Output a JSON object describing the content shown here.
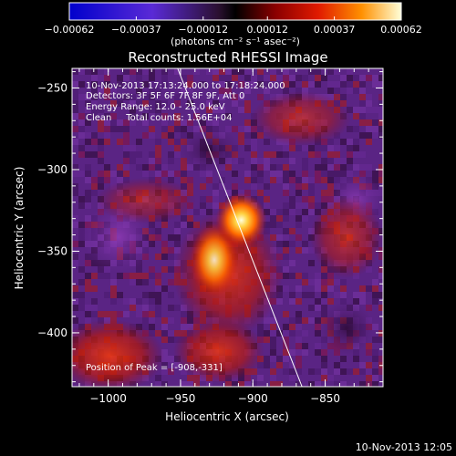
{
  "chart_data": {
    "type": "heatmap",
    "title": "Reconstructed RHESSI Image",
    "xlabel": "Heliocentric X (arcsec)",
    "ylabel": "Heliocentric Y (arcsec)",
    "xlim": [
      -1025,
      -810
    ],
    "ylim": [
      -433,
      -238
    ],
    "x_ticks": [
      -1000,
      -950,
      -900,
      -850
    ],
    "y_ticks": [
      -400,
      -350,
      -300,
      -250
    ],
    "colorbar": {
      "ticks": [
        -0.00062,
        -0.00037,
        -0.00012,
        0.00012,
        0.00037,
        0.00062
      ],
      "tick_labels": [
        "-0.00062",
        "-0.00037",
        "-0.00012",
        "0.00012",
        "0.00037",
        "0.00062"
      ],
      "units_label": "(photons cm⁻² s⁻¹ asec⁻²)"
    },
    "annotations": [
      "10-Nov-2013 17:13:24.000 to 17:18:24.000",
      "Detectors: 3F 5F 6F 7F 8F 9F, Att 0",
      "Energy Range: 12.0 - 25.0 keV",
      "Clean     Total counts: 1.56E+04"
    ],
    "peak_label": "Position of Peak = [-908,-331]",
    "peak": [
      -908,
      -331
    ],
    "limb_line": [
      [
        -952,
        -238
      ],
      [
        -866,
        -433
      ]
    ]
  },
  "footer": {
    "timestamp": "10-Nov-2013 12:05"
  }
}
